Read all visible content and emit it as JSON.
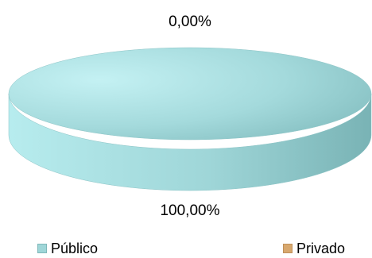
{
  "chart_data": {
    "type": "pie",
    "style": "3d",
    "categories": [
      "Público",
      "Privado"
    ],
    "values": [
      100.0,
      0.0
    ],
    "value_labels": [
      "100,00%",
      "0,00%"
    ],
    "colors": {
      "Público": "#9fd6d8",
      "Privado": "#d8a86e"
    },
    "legend_position": "bottom"
  }
}
